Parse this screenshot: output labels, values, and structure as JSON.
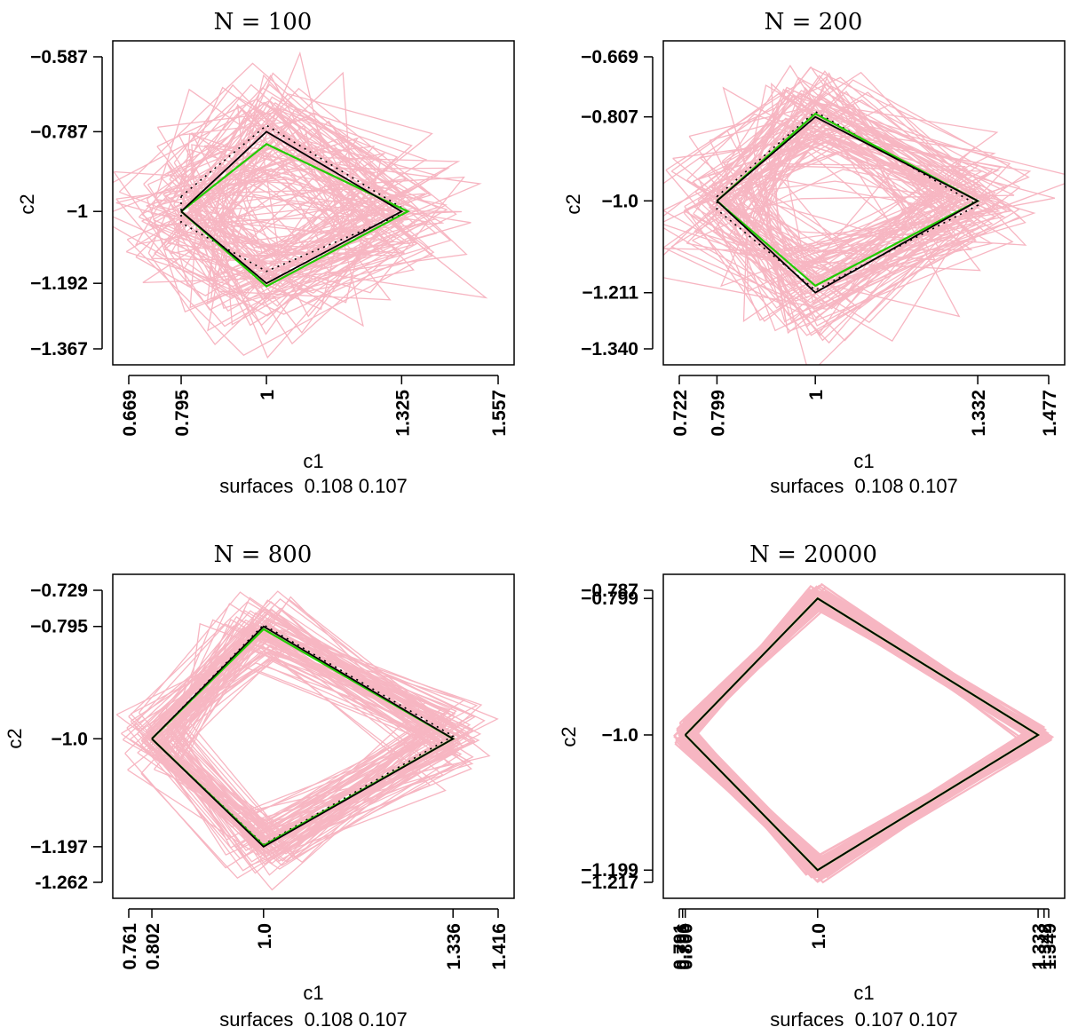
{
  "colors": {
    "simulated": "#f7b6c2",
    "true_boundary": "#000000",
    "estimated_boundary": "#22cc00",
    "reference_dotted": "#000000",
    "axis": "#000000"
  },
  "chart_data": [
    {
      "type": "line",
      "title": "N = 100",
      "xlabel": "c1",
      "ylabel": "c2",
      "subtitle": "surfaces  0.108 0.107",
      "xlim": [
        0.669,
        1.557
      ],
      "ylim": [
        -1.367,
        -0.587
      ],
      "xticks": [
        0.669,
        0.795,
        1,
        1.325,
        1.557
      ],
      "xtick_labels": [
        "0.669",
        "0.795",
        "1",
        "1.325",
        "1.557"
      ],
      "yticks": [
        -1.367,
        -1.192,
        -1,
        -0.787,
        -0.587
      ],
      "ytick_labels": [
        "−1.367",
        "−1.192",
        "−1",
        "−0.787",
        "−0.587"
      ],
      "true_quad": [
        [
          0.795,
          -1
        ],
        [
          1,
          -0.787
        ],
        [
          1.325,
          -1
        ],
        [
          1,
          -1.192
        ]
      ],
      "green_quad": [
        [
          0.795,
          -1
        ],
        [
          1,
          -0.82
        ],
        [
          1.34,
          -1
        ],
        [
          1,
          -1.2
        ]
      ],
      "dotted_quad": [
        [
          0.795,
          -0.96
        ],
        [
          1,
          -0.77
        ],
        [
          1.34,
          -1
        ],
        [
          1,
          -1.16
        ],
        [
          0.795,
          -1.03
        ]
      ],
      "spread": 0.15
    },
    {
      "type": "line",
      "title": "N = 200",
      "xlabel": "c1",
      "ylabel": "c2",
      "subtitle": "surfaces  0.108 0.107",
      "xlim": [
        0.722,
        1.477
      ],
      "ylim": [
        -1.34,
        -0.669
      ],
      "xticks": [
        0.722,
        0.799,
        1,
        1.332,
        1.477
      ],
      "xtick_labels": [
        "0.722",
        "0.799",
        "1",
        "1.332",
        "1.477"
      ],
      "yticks": [
        -1.34,
        -1.211,
        -1.0,
        -0.807,
        -0.669
      ],
      "ytick_labels": [
        "−1.340",
        "−1.211",
        "−1.0",
        "−0.807",
        "−0.669"
      ],
      "true_quad": [
        [
          0.799,
          -1
        ],
        [
          1,
          -0.807
        ],
        [
          1.332,
          -1
        ],
        [
          1,
          -1.211
        ]
      ],
      "green_quad": [
        [
          0.799,
          -1
        ],
        [
          1,
          -0.8
        ],
        [
          1.332,
          -1
        ],
        [
          1,
          -1.195
        ]
      ],
      "dotted_quad": [
        [
          0.799,
          -0.99
        ],
        [
          1,
          -0.795
        ],
        [
          1.332,
          -1.01
        ],
        [
          1,
          -1.205
        ],
        [
          0.799,
          -1.02
        ]
      ],
      "spread": 0.11
    },
    {
      "type": "line",
      "title": "N = 800",
      "xlabel": "c1",
      "ylabel": "c2",
      "subtitle": "surfaces  0.108 0.107",
      "xlim": [
        0.761,
        1.416
      ],
      "ylim": [
        -1.262,
        -0.729
      ],
      "xticks": [
        0.761,
        0.802,
        1.0,
        1.336,
        1.416
      ],
      "xtick_labels": [
        "0.761",
        "0.802",
        "1.0",
        "1.336",
        "1.416"
      ],
      "yticks": [
        -1.262,
        -1.197,
        -1.0,
        -0.795,
        -0.729
      ],
      "ytick_labels": [
        "-1.262",
        "−1.197",
        "−1.0",
        "−0.795",
        "−0.729"
      ],
      "true_quad": [
        [
          0.802,
          -1
        ],
        [
          1,
          -0.795
        ],
        [
          1.336,
          -1
        ],
        [
          1,
          -1.197
        ]
      ],
      "green_quad": [
        [
          0.802,
          -1
        ],
        [
          1,
          -0.8
        ],
        [
          1.336,
          -1
        ],
        [
          1,
          -1.195
        ]
      ],
      "dotted_quad": [
        [
          0.802,
          -1
        ],
        [
          1,
          -0.792
        ],
        [
          1.336,
          -0.995
        ],
        [
          1,
          -1.193
        ],
        [
          0.802,
          -1
        ]
      ],
      "spread": 0.05
    },
    {
      "type": "line",
      "title": "N = 20000",
      "xlabel": "c1",
      "ylabel": "c2",
      "subtitle": "surfaces  0.107 0.107",
      "xlim": [
        0.791,
        1.349
      ],
      "ylim": [
        -1.217,
        -0.787
      ],
      "xticks": [
        0.791,
        0.796,
        0.8,
        1.0,
        1.333,
        1.342,
        1.349
      ],
      "xtick_labels": [
        "0.791",
        "0.796",
        "0.800",
        "1.0",
        "1.333",
        "1.342",
        "1.349"
      ],
      "yticks": [
        -1.217,
        -1.199,
        -1.0,
        -0.799,
        -0.787
      ],
      "ytick_labels": [
        "−1.217",
        "−1.199",
        "−1.0",
        "−0.799",
        "−0.787"
      ],
      "true_quad": [
        [
          0.8,
          -1
        ],
        [
          1,
          -0.799
        ],
        [
          1.333,
          -1
        ],
        [
          1,
          -1.199
        ]
      ],
      "green_quad": [
        [
          0.8,
          -1
        ],
        [
          1,
          -0.799
        ],
        [
          1.333,
          -1
        ],
        [
          1,
          -1.199
        ]
      ],
      "dotted_quad": [
        [
          0.8,
          -1
        ],
        [
          1,
          -0.799
        ],
        [
          1.333,
          -1
        ],
        [
          1,
          -1.199
        ],
        [
          0.8,
          -1
        ]
      ],
      "spread": 0.012
    }
  ]
}
